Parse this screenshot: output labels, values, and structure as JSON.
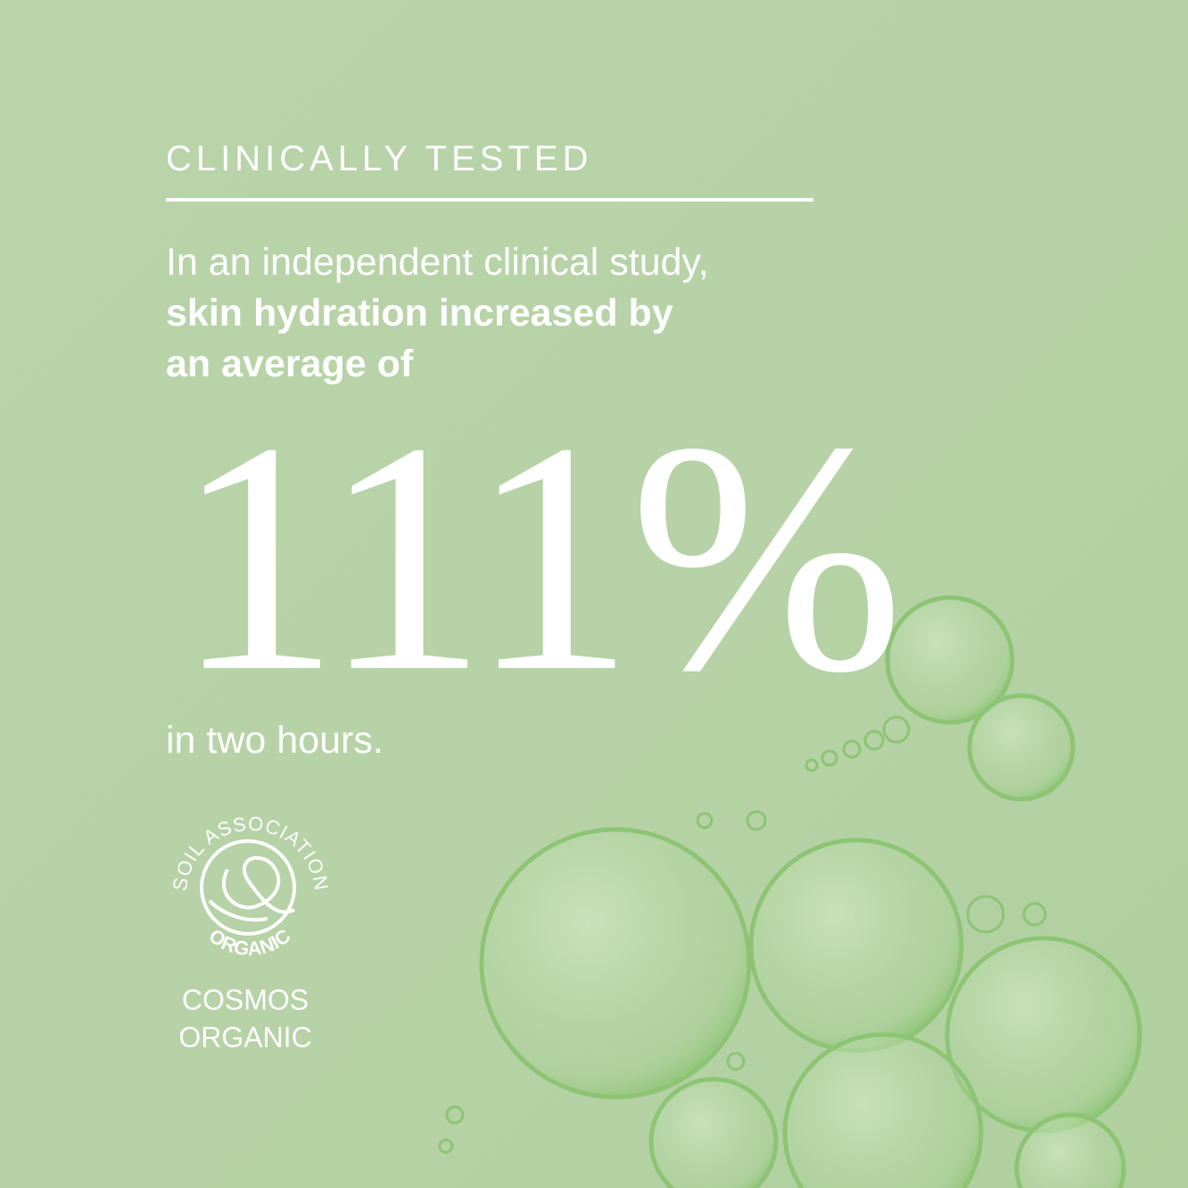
{
  "heading": "CLINICALLY TESTED",
  "intro_regular": "In an independent clinical study,",
  "intro_bold_1": "skin hydration increased by",
  "intro_bold_2": "an average of",
  "stat": "111%",
  "after": "in two hours.",
  "logo": {
    "top_text": "SOIL ASSOCIATION",
    "bottom_text": "ORGANIC",
    "icon": "soil-association-leaf-icon"
  },
  "cert_line1": "COSMOS",
  "cert_line2": "ORGANIC",
  "colors": {
    "background": "#b8d3a8",
    "text": "#ffffff",
    "bubble": "#8fc27a"
  }
}
